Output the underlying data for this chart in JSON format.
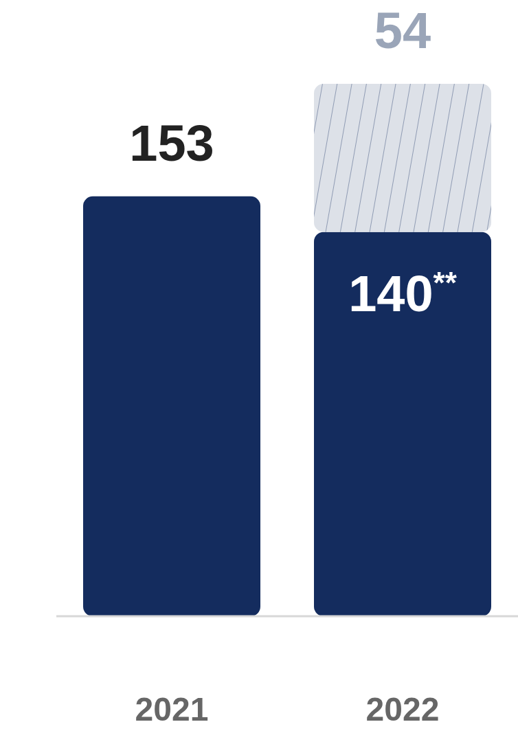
{
  "chart_data": {
    "type": "bar",
    "stacked": true,
    "categories": [
      "2021",
      "2022"
    ],
    "series": [
      {
        "color": "#142c5e",
        "values": [
          153,
          140
        ],
        "value_labels": [
          "153",
          "140$^{**}$"
        ]
      },
      {
        "color": "#dde1e8",
        "values": [
          null,
          54
        ],
        "value_labels": [
          null,
          "54"
        ]
      }
    ]
  }
}
